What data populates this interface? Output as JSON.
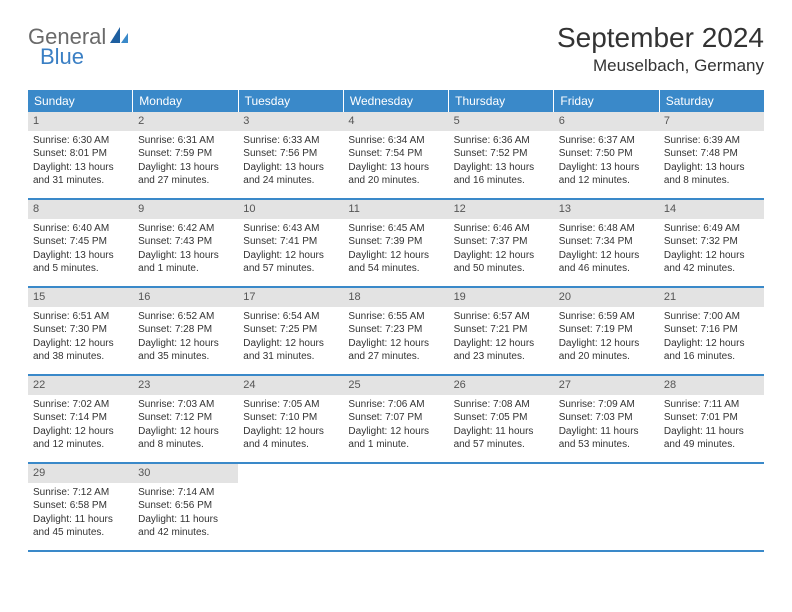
{
  "logo": {
    "text1": "General",
    "text2": "Blue"
  },
  "title": "September 2024",
  "location": "Meuselbach, Germany",
  "colors": {
    "header_bg": "#3a89c9",
    "header_text": "#ffffff",
    "daynum_bg": "#e3e3e3",
    "daynum_text": "#555555",
    "body_text": "#333333",
    "row_border": "#3a89c9",
    "logo_gray": "#6a6a6a",
    "logo_blue": "#3a7fc4"
  },
  "weekdays": [
    "Sunday",
    "Monday",
    "Tuesday",
    "Wednesday",
    "Thursday",
    "Friday",
    "Saturday"
  ],
  "weeks": [
    [
      {
        "day": 1,
        "sunrise": "6:30 AM",
        "sunset": "8:01 PM",
        "daylight": "13 hours and 31 minutes."
      },
      {
        "day": 2,
        "sunrise": "6:31 AM",
        "sunset": "7:59 PM",
        "daylight": "13 hours and 27 minutes."
      },
      {
        "day": 3,
        "sunrise": "6:33 AM",
        "sunset": "7:56 PM",
        "daylight": "13 hours and 24 minutes."
      },
      {
        "day": 4,
        "sunrise": "6:34 AM",
        "sunset": "7:54 PM",
        "daylight": "13 hours and 20 minutes."
      },
      {
        "day": 5,
        "sunrise": "6:36 AM",
        "sunset": "7:52 PM",
        "daylight": "13 hours and 16 minutes."
      },
      {
        "day": 6,
        "sunrise": "6:37 AM",
        "sunset": "7:50 PM",
        "daylight": "13 hours and 12 minutes."
      },
      {
        "day": 7,
        "sunrise": "6:39 AM",
        "sunset": "7:48 PM",
        "daylight": "13 hours and 8 minutes."
      }
    ],
    [
      {
        "day": 8,
        "sunrise": "6:40 AM",
        "sunset": "7:45 PM",
        "daylight": "13 hours and 5 minutes."
      },
      {
        "day": 9,
        "sunrise": "6:42 AM",
        "sunset": "7:43 PM",
        "daylight": "13 hours and 1 minute."
      },
      {
        "day": 10,
        "sunrise": "6:43 AM",
        "sunset": "7:41 PM",
        "daylight": "12 hours and 57 minutes."
      },
      {
        "day": 11,
        "sunrise": "6:45 AM",
        "sunset": "7:39 PM",
        "daylight": "12 hours and 54 minutes."
      },
      {
        "day": 12,
        "sunrise": "6:46 AM",
        "sunset": "7:37 PM",
        "daylight": "12 hours and 50 minutes."
      },
      {
        "day": 13,
        "sunrise": "6:48 AM",
        "sunset": "7:34 PM",
        "daylight": "12 hours and 46 minutes."
      },
      {
        "day": 14,
        "sunrise": "6:49 AM",
        "sunset": "7:32 PM",
        "daylight": "12 hours and 42 minutes."
      }
    ],
    [
      {
        "day": 15,
        "sunrise": "6:51 AM",
        "sunset": "7:30 PM",
        "daylight": "12 hours and 38 minutes."
      },
      {
        "day": 16,
        "sunrise": "6:52 AM",
        "sunset": "7:28 PM",
        "daylight": "12 hours and 35 minutes."
      },
      {
        "day": 17,
        "sunrise": "6:54 AM",
        "sunset": "7:25 PM",
        "daylight": "12 hours and 31 minutes."
      },
      {
        "day": 18,
        "sunrise": "6:55 AM",
        "sunset": "7:23 PM",
        "daylight": "12 hours and 27 minutes."
      },
      {
        "day": 19,
        "sunrise": "6:57 AM",
        "sunset": "7:21 PM",
        "daylight": "12 hours and 23 minutes."
      },
      {
        "day": 20,
        "sunrise": "6:59 AM",
        "sunset": "7:19 PM",
        "daylight": "12 hours and 20 minutes."
      },
      {
        "day": 21,
        "sunrise": "7:00 AM",
        "sunset": "7:16 PM",
        "daylight": "12 hours and 16 minutes."
      }
    ],
    [
      {
        "day": 22,
        "sunrise": "7:02 AM",
        "sunset": "7:14 PM",
        "daylight": "12 hours and 12 minutes."
      },
      {
        "day": 23,
        "sunrise": "7:03 AM",
        "sunset": "7:12 PM",
        "daylight": "12 hours and 8 minutes."
      },
      {
        "day": 24,
        "sunrise": "7:05 AM",
        "sunset": "7:10 PM",
        "daylight": "12 hours and 4 minutes."
      },
      {
        "day": 25,
        "sunrise": "7:06 AM",
        "sunset": "7:07 PM",
        "daylight": "12 hours and 1 minute."
      },
      {
        "day": 26,
        "sunrise": "7:08 AM",
        "sunset": "7:05 PM",
        "daylight": "11 hours and 57 minutes."
      },
      {
        "day": 27,
        "sunrise": "7:09 AM",
        "sunset": "7:03 PM",
        "daylight": "11 hours and 53 minutes."
      },
      {
        "day": 28,
        "sunrise": "7:11 AM",
        "sunset": "7:01 PM",
        "daylight": "11 hours and 49 minutes."
      }
    ],
    [
      {
        "day": 29,
        "sunrise": "7:12 AM",
        "sunset": "6:58 PM",
        "daylight": "11 hours and 45 minutes."
      },
      {
        "day": 30,
        "sunrise": "7:14 AM",
        "sunset": "6:56 PM",
        "daylight": "11 hours and 42 minutes."
      },
      null,
      null,
      null,
      null,
      null
    ]
  ],
  "labels": {
    "sunrise": "Sunrise:",
    "sunset": "Sunset:",
    "daylight": "Daylight:"
  }
}
